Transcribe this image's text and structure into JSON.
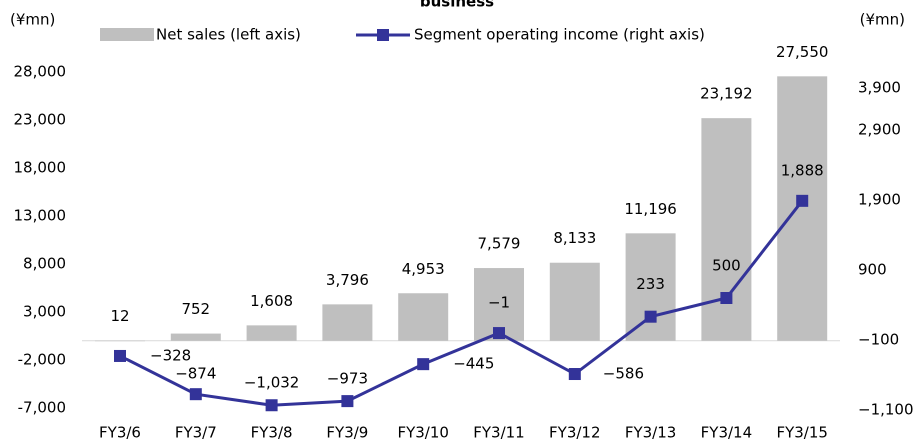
{
  "chart_data": {
    "type": "bar-line",
    "title": "business",
    "y_label": "(¥mn)",
    "y2_label": "(¥mn)",
    "categories": [
      "FY3/6",
      "FY3/7",
      "FY3/8",
      "FY3/9",
      "FY3/10",
      "FY3/11",
      "FY3/12",
      "FY3/13",
      "FY3/14",
      "FY3/15"
    ],
    "series": [
      {
        "name": "Net sales (left axis)",
        "type": "bar",
        "color": "#bfbfbf",
        "axis": "y",
        "values": [
          12,
          752,
          1608,
          3796,
          4953,
          7579,
          8133,
          11196,
          23192,
          27550
        ],
        "value_labels": [
          "12",
          "752",
          "1,608",
          "3,796",
          "4,953",
          "7,579",
          "8,133",
          "11,196",
          "23,192",
          "27,550"
        ]
      },
      {
        "name": "Segment operating income (right axis)",
        "type": "line",
        "color": "#333399",
        "axis": "y2",
        "values": [
          -328,
          -874,
          -1032,
          -973,
          -445,
          -1,
          -586,
          233,
          500,
          1888
        ],
        "value_labels": [
          "−328",
          "−874",
          "−1,032",
          "−973",
          "−445",
          "−1",
          "−586",
          "233",
          "500",
          "1,888"
        ]
      }
    ],
    "ylim": [
      -7000,
      28000
    ],
    "yticks": [
      {
        "value": -7000,
        "label": "-7,000"
      },
      {
        "value": -2000,
        "label": "-2,000"
      },
      {
        "value": 3000,
        "label": "3,000"
      },
      {
        "value": 8000,
        "label": "8,000"
      },
      {
        "value": 13000,
        "label": "13,000"
      },
      {
        "value": 18000,
        "label": "18,000"
      },
      {
        "value": 23000,
        "label": "23,000"
      },
      {
        "value": 28000,
        "label": "28,000"
      }
    ],
    "y2lim": [
      -1100,
      3900
    ],
    "y2ticks": [
      {
        "value": -1100,
        "label": "−1,100"
      },
      {
        "value": -100,
        "label": "−100"
      },
      900,
      {
        "value": 1900,
        "label": "1,900"
      },
      {
        "value": 2900,
        "label": "2,900"
      },
      {
        "value": 3900,
        "label": "3,900"
      }
    ],
    "legend": "top"
  }
}
